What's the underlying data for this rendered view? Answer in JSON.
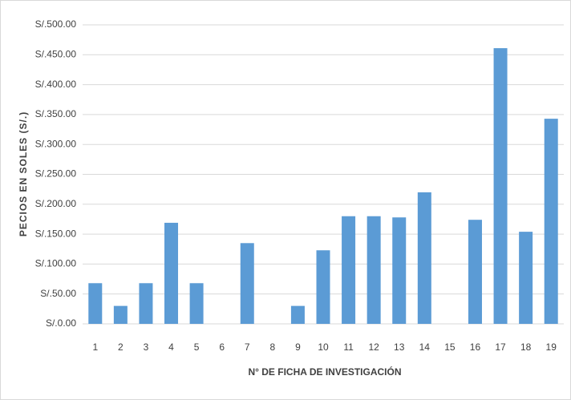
{
  "chart_data": {
    "type": "bar",
    "xlabel": "N° DE FICHA DE INVESTIGACIÓN",
    "ylabel": "PECIOS EN SOLES (S/.)",
    "categories": [
      "1",
      "2",
      "3",
      "4",
      "5",
      "6",
      "7",
      "8",
      "9",
      "10",
      "11",
      "12",
      "13",
      "14",
      "15",
      "16",
      "17",
      "18",
      "19"
    ],
    "values": [
      68,
      30,
      68,
      169,
      68,
      0,
      135,
      0,
      30,
      123,
      180,
      180,
      178,
      220,
      0,
      174,
      461,
      154,
      343
    ],
    "color": "#5b9bd5",
    "ylim": [
      0,
      500
    ],
    "yticks": [
      {
        "value": 0,
        "label": "S/.0.00"
      },
      {
        "value": 50,
        "label": "S/.50.00"
      },
      {
        "value": 100,
        "label": "S/.100.00"
      },
      {
        "value": 150,
        "label": "S/.150.00"
      },
      {
        "value": 200,
        "label": "S/.200.00"
      },
      {
        "value": 250,
        "label": "S/.250.00"
      },
      {
        "value": 300,
        "label": "S/.300.00"
      },
      {
        "value": 350,
        "label": "S/.350.00"
      },
      {
        "value": 400,
        "label": "S/.400.00"
      },
      {
        "value": 450,
        "label": "S/.450.00"
      },
      {
        "value": 500,
        "label": "S/.500.00"
      }
    ],
    "grid": true
  }
}
